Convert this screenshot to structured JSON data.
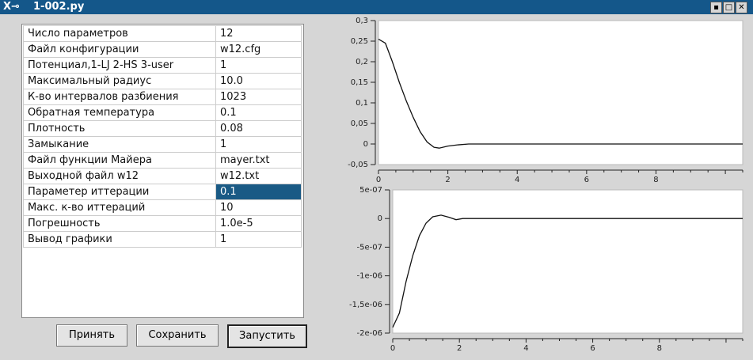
{
  "window": {
    "title": "1-002.py",
    "app_icon": "x-window-icon",
    "controls": [
      "minimize",
      "maximize",
      "close"
    ]
  },
  "params": [
    {
      "label": "Число параметров",
      "value": "12"
    },
    {
      "label": "Файл конфигурации",
      "value": "w12.cfg"
    },
    {
      "label": "Потенциал,1-LJ 2-HS 3-user",
      "value": "1"
    },
    {
      "label": "Максимальный радиус",
      "value": "10.0"
    },
    {
      "label": "К-во интервалов разбиения",
      "value": "1023"
    },
    {
      "label": "Обратная температура",
      "value": "0.1"
    },
    {
      "label": "Плотность",
      "value": "0.08"
    },
    {
      "label": "Замыкание",
      "value": "1"
    },
    {
      "label": "Файл функции Майера",
      "value": "mayer.txt"
    },
    {
      "label": "Выходной файл w12",
      "value": "w12.txt"
    },
    {
      "label": "Параметер иттерации",
      "value": "0.1",
      "selected": true
    },
    {
      "label": "Макс. к-во иттераций",
      "value": "10"
    },
    {
      "label": "Погрешность",
      "value": "1.0e-5"
    },
    {
      "label": "Вывод графики",
      "value": "1"
    }
  ],
  "buttons": {
    "accept": "Принять",
    "save": "Сохранить",
    "run": "Запустить"
  },
  "chart_data": [
    {
      "type": "line",
      "xlim": [
        0,
        10.5
      ],
      "ylim": [
        -0.05,
        0.3
      ],
      "xticks": [
        "0",
        "2",
        "4",
        "6",
        "8"
      ],
      "yticks": [
        "0,3",
        "0,25",
        "0,2",
        "0,15",
        "0,1",
        "0,05",
        "0",
        "-0,05"
      ],
      "x": [
        0,
        0.2,
        0.4,
        0.6,
        0.8,
        1.0,
        1.2,
        1.4,
        1.6,
        1.75,
        2.0,
        2.3,
        2.6,
        10.5
      ],
      "y": [
        0.255,
        0.245,
        0.2,
        0.15,
        0.105,
        0.065,
        0.03,
        0.005,
        -0.008,
        -0.01,
        -0.005,
        -0.002,
        0,
        0
      ]
    },
    {
      "type": "line",
      "xlim": [
        0,
        10.5
      ],
      "ylim": [
        -2e-06,
        5e-07
      ],
      "xticks": [
        "0",
        "2",
        "4",
        "6",
        "8"
      ],
      "yticks": [
        "5e-07",
        "0",
        "-5e-07",
        "-1e-06",
        "-1,5e-06",
        "-2e-06"
      ],
      "x": [
        0,
        0.2,
        0.4,
        0.6,
        0.8,
        1.0,
        1.2,
        1.45,
        1.7,
        1.9,
        2.1,
        10.5
      ],
      "y": [
        -1.9e-06,
        -1.65e-06,
        -1.1e-06,
        -6.5e-07,
        -3e-07,
        -8e-08,
        3e-08,
        6e-08,
        2e-08,
        -2e-08,
        0,
        0
      ]
    }
  ]
}
